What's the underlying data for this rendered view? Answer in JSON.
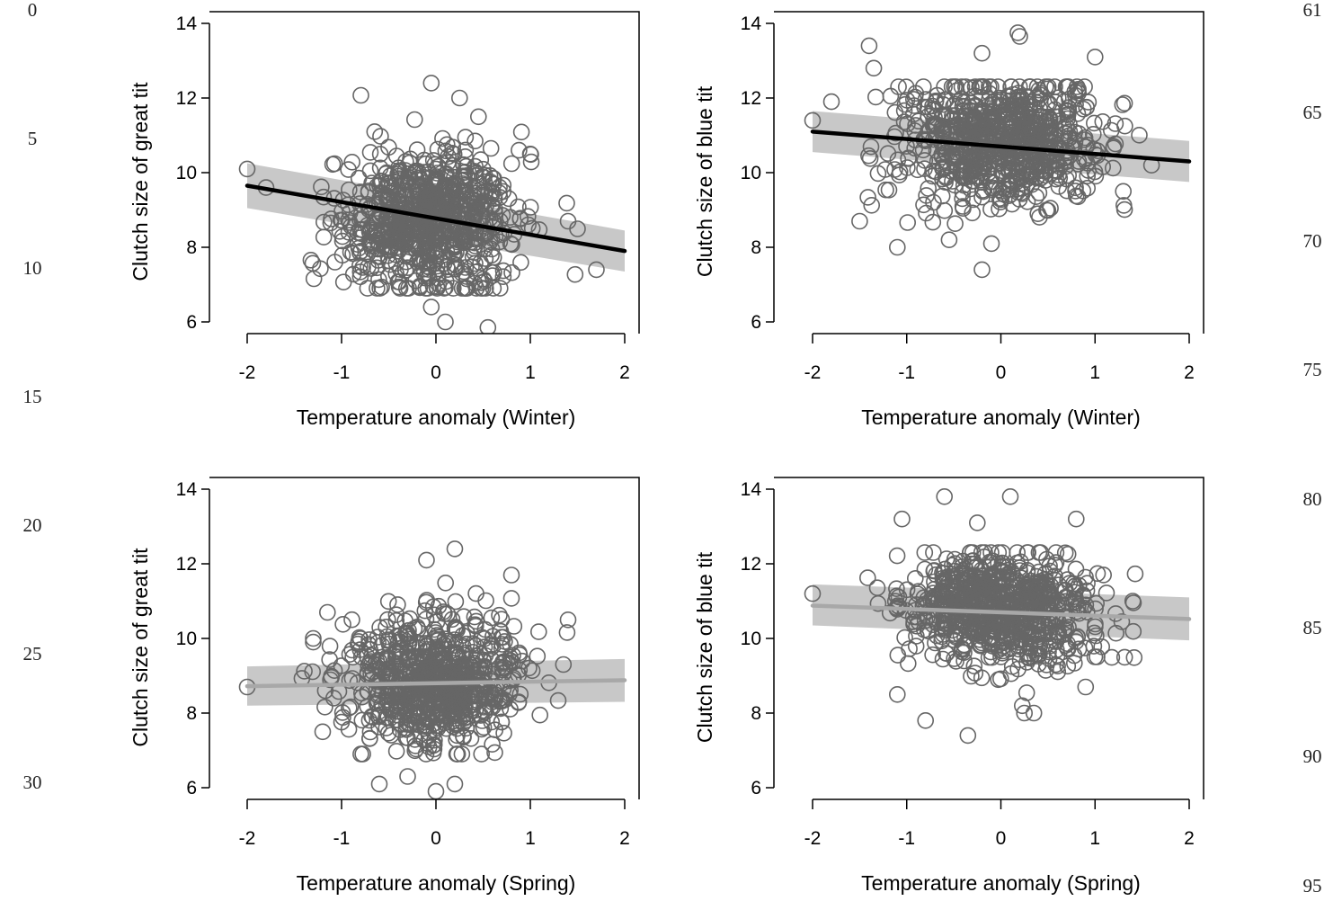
{
  "line_numbers": {
    "left": [
      "0",
      "5",
      "10",
      "15",
      "20",
      "25",
      "30"
    ],
    "right": [
      "61",
      "65",
      "70",
      "75",
      "80",
      "85",
      "90",
      "95"
    ]
  },
  "colors": {
    "points": "#666666",
    "band": "#c8c8c8",
    "line_significant": "#000000",
    "line_nonsignificant": "#a8a8a8"
  },
  "chart_data": [
    {
      "type": "scatter",
      "xlabel": "Temperature anomaly (Winter)",
      "ylabel": "Clutch size of great tit",
      "xlim": [
        -2,
        2
      ],
      "ylim": [
        6,
        14
      ],
      "xticks": [
        "-2",
        "-1",
        "0",
        "1",
        "2"
      ],
      "yticks": [
        "6",
        "8",
        "10",
        "12",
        "14"
      ],
      "fit": {
        "x": [
          -2,
          2
        ],
        "y": [
          9.65,
          7.9
        ],
        "style": "significant"
      },
      "ci": {
        "lower": [
          9.05,
          7.35
        ],
        "upper": [
          10.25,
          8.45
        ]
      },
      "points": {
        "n": 800,
        "x_center": -0.05,
        "x_sd": 0.45,
        "y_center": 8.7,
        "y_sd": 0.9,
        "seed": 11,
        "outliers": [
          [
            -2.0,
            10.1
          ],
          [
            -1.8,
            9.6
          ],
          [
            -0.05,
            12.4
          ],
          [
            0.25,
            12.0
          ],
          [
            0.45,
            11.5
          ],
          [
            -0.65,
            11.1
          ],
          [
            1.0,
            10.5
          ],
          [
            1.4,
            8.7
          ],
          [
            1.7,
            7.4
          ],
          [
            -0.05,
            6.4
          ],
          [
            0.1,
            6.0
          ],
          [
            0.55,
            5.85
          ],
          [
            0.88,
            10.6
          ]
        ]
      }
    },
    {
      "type": "scatter",
      "xlabel": "Temperature anomaly (Winter)",
      "ylabel": "Clutch size of blue tit",
      "xlim": [
        -2,
        2
      ],
      "ylim": [
        6,
        14
      ],
      "xticks": [
        "-2",
        "-1",
        "0",
        "1",
        "2"
      ],
      "yticks": [
        "6",
        "8",
        "10",
        "12",
        "14"
      ],
      "fit": {
        "x": [
          -2,
          2
        ],
        "y": [
          11.1,
          10.3
        ],
        "style": "significant"
      },
      "ci": {
        "lower": [
          10.55,
          9.75
        ],
        "upper": [
          11.65,
          10.85
        ]
      },
      "points": {
        "n": 800,
        "x_center": 0.0,
        "x_sd": 0.5,
        "y_center": 10.8,
        "y_sd": 0.85,
        "seed": 23,
        "outliers": [
          [
            -2.0,
            11.4
          ],
          [
            -1.8,
            11.9
          ],
          [
            -1.4,
            13.4
          ],
          [
            -1.35,
            12.8
          ],
          [
            0.18,
            13.75
          ],
          [
            0.2,
            13.65
          ],
          [
            -0.2,
            13.2
          ],
          [
            1.0,
            13.1
          ],
          [
            -1.5,
            8.7
          ],
          [
            -1.1,
            8.0
          ],
          [
            -0.55,
            8.2
          ],
          [
            -0.2,
            7.4
          ],
          [
            -0.1,
            8.1
          ],
          [
            1.3,
            9.5
          ],
          [
            1.6,
            10.2
          ]
        ]
      }
    },
    {
      "type": "scatter",
      "xlabel": "Temperature anomaly (Spring)",
      "ylabel": "Clutch size of great tit",
      "xlim": [
        -2,
        2
      ],
      "ylim": [
        6,
        14
      ],
      "xticks": [
        "-2",
        "-1",
        "0",
        "1",
        "2"
      ],
      "yticks": [
        "6",
        "8",
        "10",
        "12",
        "14"
      ],
      "fit": {
        "x": [
          -2,
          2
        ],
        "y": [
          8.72,
          8.88
        ],
        "style": "nonsignificant"
      },
      "ci": {
        "lower": [
          8.2,
          8.3
        ],
        "upper": [
          9.25,
          9.45
        ]
      },
      "points": {
        "n": 800,
        "x_center": 0.0,
        "x_sd": 0.45,
        "y_center": 8.8,
        "y_sd": 0.8,
        "seed": 37,
        "outliers": [
          [
            -2.0,
            8.7
          ],
          [
            -1.3,
            10.0
          ],
          [
            -1.3,
            9.9
          ],
          [
            -1.15,
            10.7
          ],
          [
            -0.1,
            12.1
          ],
          [
            0.2,
            12.4
          ],
          [
            0.8,
            11.7
          ],
          [
            1.4,
            10.5
          ],
          [
            1.35,
            9.3
          ],
          [
            -0.6,
            6.1
          ],
          [
            -0.3,
            6.3
          ],
          [
            0.0,
            5.9
          ],
          [
            0.2,
            6.1
          ],
          [
            -1.2,
            7.5
          ]
        ]
      }
    },
    {
      "type": "scatter",
      "xlabel": "Temperature anomaly (Spring)",
      "ylabel": "Clutch size of blue tit",
      "xlim": [
        -2,
        2
      ],
      "ylim": [
        6,
        14
      ],
      "xticks": [
        "-2",
        "-1",
        "0",
        "1",
        "2"
      ],
      "yticks": [
        "6",
        "8",
        "10",
        "12",
        "14"
      ],
      "fit": {
        "x": [
          -2,
          2
        ],
        "y": [
          10.88,
          10.52
        ],
        "style": "nonsignificant"
      },
      "ci": {
        "lower": [
          10.35,
          9.95
        ],
        "upper": [
          11.45,
          11.1
        ]
      },
      "points": {
        "n": 800,
        "x_center": 0.0,
        "x_sd": 0.5,
        "y_center": 10.8,
        "y_sd": 0.75,
        "seed": 53,
        "outliers": [
          [
            -2.0,
            11.2
          ],
          [
            -0.6,
            13.8
          ],
          [
            0.1,
            13.8
          ],
          [
            -1.05,
            13.2
          ],
          [
            -0.25,
            13.1
          ],
          [
            0.8,
            13.2
          ],
          [
            -1.1,
            8.5
          ],
          [
            -0.8,
            7.8
          ],
          [
            -0.35,
            7.4
          ],
          [
            0.25,
            8.0
          ],
          [
            0.35,
            8.0
          ],
          [
            0.9,
            8.7
          ],
          [
            1.4,
            11.0
          ]
        ]
      }
    }
  ]
}
